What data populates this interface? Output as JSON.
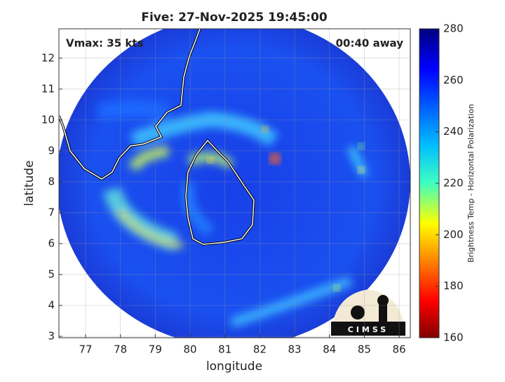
{
  "chart_data": {
    "type": "map",
    "title": "Five: 27-Nov-2025 19:45:00",
    "annotations": [
      "Vmax: 35 kts",
      "00:40 away"
    ],
    "x_label": "longitude",
    "y_label": "latitude",
    "xlim": [
      76.235,
      86.32
    ],
    "ylim": [
      2.955,
      12.95
    ],
    "xticks": [
      77,
      78,
      79,
      80,
      81,
      82,
      83,
      84,
      85,
      86
    ],
    "yticks": [
      3,
      4,
      5,
      6,
      7,
      8,
      9,
      10,
      11,
      12
    ],
    "grid": true,
    "colorbar": {
      "label": "Brightness Temp - Horizontal Polarization",
      "lim": [
        160,
        280
      ],
      "ticks": [
        160,
        180,
        200,
        220,
        240,
        260,
        280
      ]
    },
    "logo": "CIMSS"
  }
}
